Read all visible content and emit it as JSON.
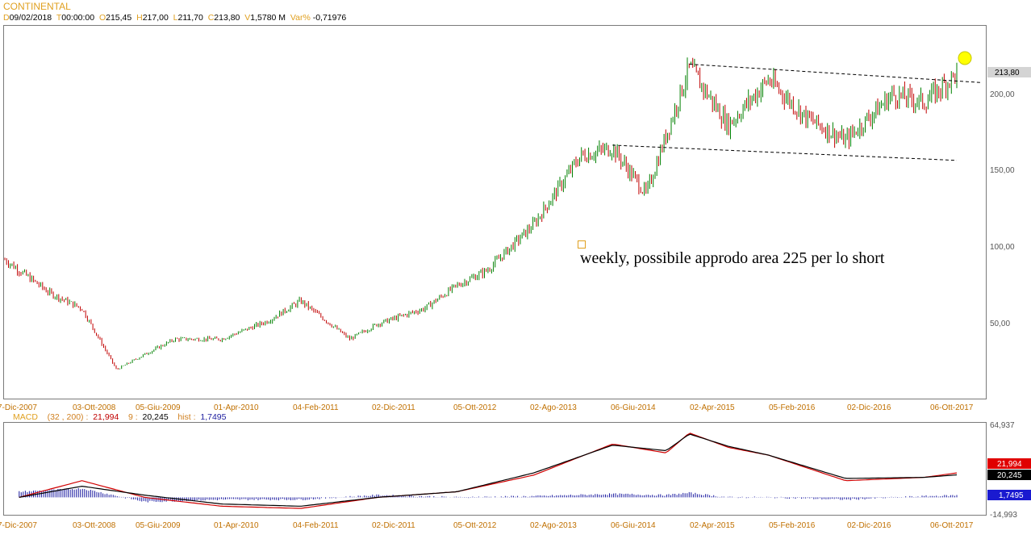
{
  "header": {
    "title": "CONTINENTAL",
    "date_key": "D",
    "date": "09/02/2018",
    "time_key": "T",
    "time": "00:00:00",
    "open_key": "O",
    "open": "215,45",
    "high_key": "H",
    "high": "217,00",
    "low_key": "L",
    "low": "211,70",
    "close_key": "C",
    "close": "213,80",
    "volume_key": "V",
    "volume": "1,5780 M",
    "var_key": "Var%",
    "var": "-0,71976"
  },
  "annotation": "weekly, possibile approdo area 225 per lo short",
  "price_axis": {
    "ticks": [
      "200,00",
      "150,00",
      "100,00",
      "50,00"
    ],
    "last_price": "213,80"
  },
  "date_axis": {
    "labels": [
      "7-Dic-2007",
      "03-Ott-2008",
      "05-Giu-2009",
      "01-Apr-2010",
      "04-Feb-2011",
      "02-Dic-2011",
      "05-Ott-2012",
      "02-Ago-2013",
      "06-Giu-2014",
      "02-Apr-2015",
      "05-Feb-2016",
      "02-Dic-2016",
      "06-Ott-2017"
    ]
  },
  "macd": {
    "label": "MACD",
    "params": "(32 , 200) :",
    "macd_value": "21,994",
    "signal_key": "9 :",
    "signal_value": "20,245",
    "hist_key": "hist :",
    "hist_value": "1,7495",
    "axis_top": "64,937",
    "axis_bottom": "-14,993"
  },
  "colors": {
    "up": "#008000",
    "down": "#c00000",
    "macd_line": "#d00000",
    "signal_line": "#000000",
    "histogram": "#1a1aa0",
    "highlight": "#ffff00"
  },
  "chart_data": [
    {
      "type": "candlestick",
      "title": "CONTINENTAL",
      "timeframe": "weekly",
      "x": [
        "2007-12-07",
        "2008-06-01",
        "2008-10-03",
        "2009-02-15",
        "2009-06-05",
        "2009-10-01",
        "2010-04-01",
        "2010-10-01",
        "2011-02-04",
        "2011-08-15",
        "2011-12-02",
        "2012-06-01",
        "2012-10-05",
        "2013-02-01",
        "2013-08-02",
        "2014-02-01",
        "2014-06-06",
        "2014-10-15",
        "2015-04-02",
        "2015-09-01",
        "2016-02-05",
        "2016-07-01",
        "2016-12-02",
        "2017-06-01",
        "2017-10-06",
        "2018-02-09"
      ],
      "close": [
        92,
        70,
        60,
        20,
        30,
        40,
        40,
        52,
        65,
        40,
        50,
        60,
        75,
        85,
        115,
        160,
        165,
        135,
        218,
        180,
        210,
        185,
        170,
        200,
        195,
        213.8
      ],
      "ylim": [
        10,
        225
      ],
      "y_ticks": [
        200,
        150,
        100,
        50
      ],
      "trendlines": [
        {
          "name": "upper",
          "from": [
            "2015-04-02",
            220
          ],
          "to": [
            "2018-02-09",
            209
          ]
        },
        {
          "name": "lower",
          "from": [
            "2014-06-06",
            167
          ],
          "to": [
            "2018-02-09",
            157
          ]
        }
      ],
      "target_marker": {
        "x": "2018-02-09",
        "y": 213
      }
    },
    {
      "type": "line",
      "title": "MACD",
      "params": [
        32,
        200
      ],
      "ylim": [
        -14.993,
        64.937
      ],
      "x": [
        "2008-02-01",
        "2008-10-03",
        "2009-06-05",
        "2010-04-01",
        "2011-02-04",
        "2011-12-02",
        "2012-10-05",
        "2013-08-02",
        "2014-06-06",
        "2015-01-01",
        "2015-04-02",
        "2015-09-01",
        "2016-02-05",
        "2016-12-02",
        "2017-10-06",
        "2018-02-09"
      ],
      "series": [
        {
          "name": "MACD",
          "values": [
            0,
            15,
            0,
            -8,
            -10,
            0,
            5,
            20,
            48,
            40,
            58,
            45,
            38,
            15,
            18,
            21.994
          ]
        },
        {
          "name": "Signal",
          "values": [
            0,
            10,
            2,
            -6,
            -8,
            0,
            5,
            22,
            47,
            42,
            57,
            46,
            38,
            17,
            18,
            20.245
          ]
        },
        {
          "name": "hist",
          "values": [
            5,
            8,
            -4,
            -2,
            -2,
            2,
            0,
            1,
            3,
            2,
            4,
            0,
            0,
            -2,
            1,
            1.7495
          ]
        }
      ]
    }
  ]
}
